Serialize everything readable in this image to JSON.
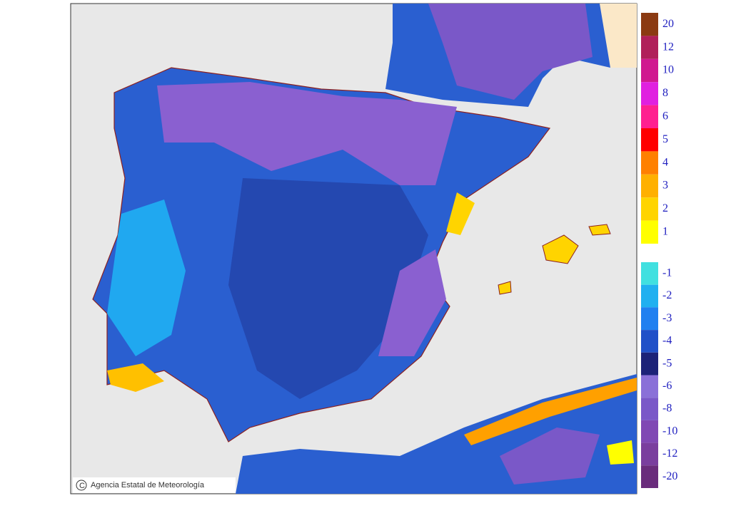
{
  "credit": "Agencia Estatal de Meteorología",
  "legend": {
    "positive": [
      {
        "label": 20,
        "color": "#8b3a12"
      },
      {
        "label": 12,
        "color": "#b0205a"
      },
      {
        "label": 10,
        "color": "#d01890"
      },
      {
        "label": 8,
        "color": "#e020e0"
      },
      {
        "label": 6,
        "color": "#ff2090"
      },
      {
        "label": 5,
        "color": "#ff0000"
      },
      {
        "label": 4,
        "color": "#ff8000"
      },
      {
        "label": 3,
        "color": "#ffb000"
      },
      {
        "label": 2,
        "color": "#ffd400"
      },
      {
        "label": 1,
        "color": "#ffff00"
      }
    ],
    "negative": [
      {
        "label": -1,
        "color": "#40e0e0"
      },
      {
        "label": -2,
        "color": "#20b0f0"
      },
      {
        "label": -3,
        "color": "#2080f0"
      },
      {
        "label": -4,
        "color": "#2050c8"
      },
      {
        "label": -5,
        "color": "#1c2278"
      },
      {
        "label": -6,
        "color": "#8a70d8"
      },
      {
        "label": -8,
        "color": "#7a58c8"
      },
      {
        "label": -10,
        "color": "#8048b4"
      },
      {
        "label": -12,
        "color": "#7a3e9e"
      },
      {
        "label": -20,
        "color": "#6a2c7c"
      }
    ]
  }
}
